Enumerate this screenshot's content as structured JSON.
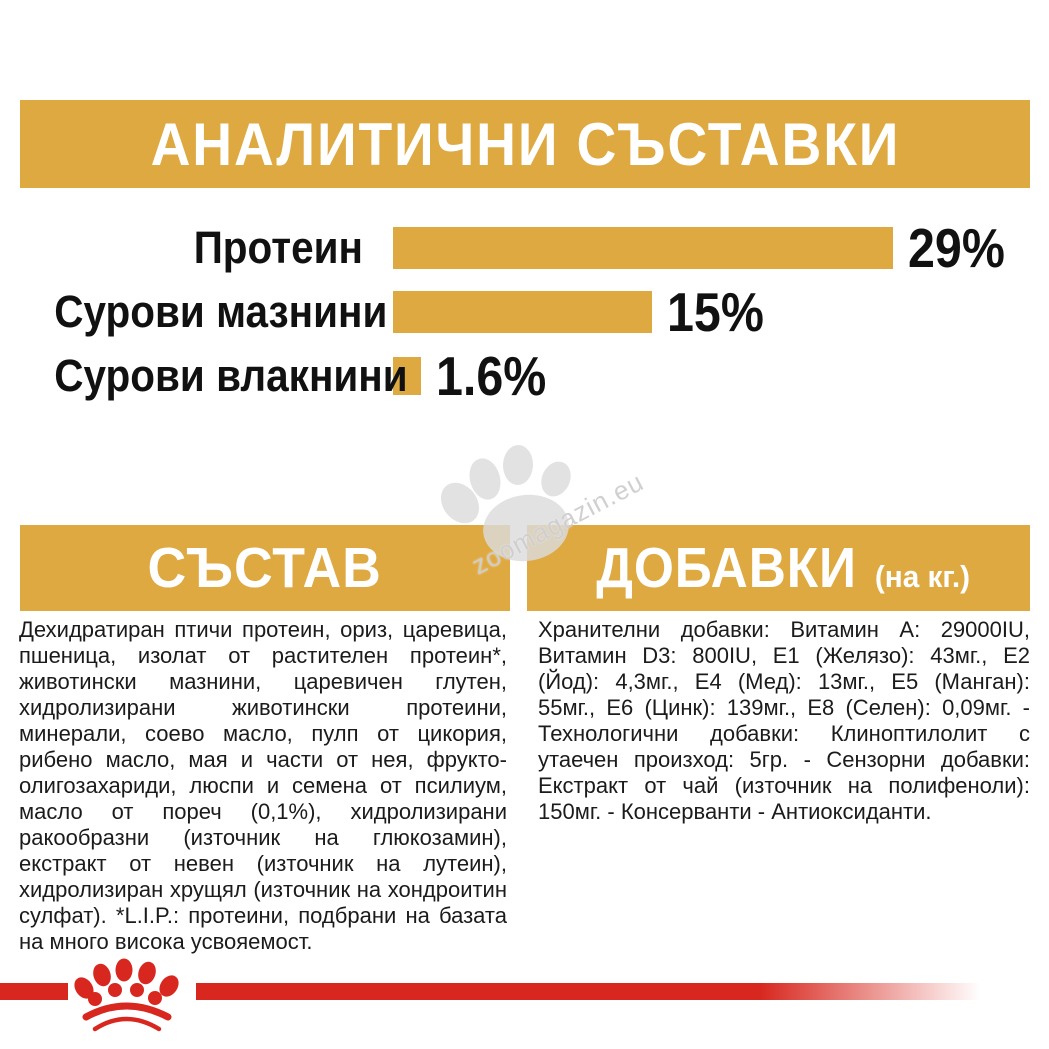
{
  "header": {
    "title": "АНАЛИТИЧНИ СЪСТАВКИ"
  },
  "chart_data": {
    "type": "bar",
    "orientation": "horizontal",
    "title": "АНАЛИТИЧНИ СЪСТАВКИ",
    "categories": [
      "Протеин",
      "Сурови мазнини",
      "Сурови влакнини"
    ],
    "values": [
      29,
      15,
      1.6
    ],
    "value_labels": [
      "29%",
      "15%",
      "1.6%"
    ],
    "unit": "%",
    "xlim": [
      0,
      29
    ],
    "bar_color": "#dfa941",
    "legend": false,
    "gridlines": false
  },
  "sections": {
    "composition": {
      "heading": "СЪСТАВ",
      "body": "Дехидратиран птичи протеин, ориз, царевица, пшеница, изолат от растителен протеин*, животински мазнини, царевичен глутен, хидролизирани животински протеини, минерали, соево масло, пулп от цикория, рибено масло, мая и части от нея, фрукто-олигозахариди, люспи и семена от псилиум, масло от пореч (0,1%), хидролизирани ракообразни (източник на глюкозамин), екстракт от невен (източник на лутеин), хидролизиран хрущял (източник на хондроитин сулфат). *L.I.P.: протеини, подбрани на базата на много висока усвояемост."
    },
    "additives": {
      "heading": "ДОБАВКИ",
      "heading_suffix": "(на кг.)",
      "body": "Хранителни добавки: Витамин А: 29000IU, Витамин D3: 800IU, E1 (Желязо): 43мг., E2 (Йод): 4,3мг., E4 (Мед): 13мг., E5 (Манган): 55мг., E6 (Цинк): 139мг., E8 (Селен): 0,09мг. - Технологични добавки: Клиноптилолит с утаечен произход: 5гр. - Сензорни добавки: Екстракт от чай (източник на полифеноли): 150мг. - Консерванти - Антиоксиданти."
    }
  },
  "watermark": {
    "text": "zoomagazin.eu",
    "icon": "paw-print"
  },
  "footer": {
    "brand_icon": "royal-canin-crown"
  },
  "colors": {
    "gold": "#dfa941",
    "red": "#d7271e",
    "text": "#1b1b1b",
    "watermark_gray": "#dcdcdc"
  }
}
